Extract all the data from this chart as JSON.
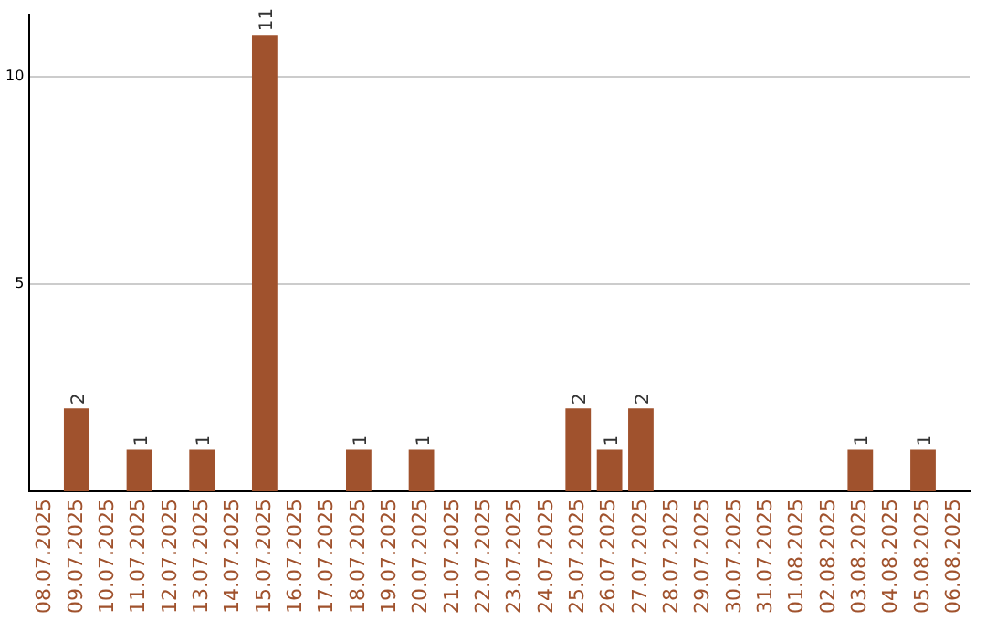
{
  "chart_data": {
    "type": "bar",
    "categories": [
      "08.07.2025",
      "09.07.2025",
      "10.07.2025",
      "11.07.2025",
      "12.07.2025",
      "13.07.2025",
      "14.07.2025",
      "15.07.2025",
      "16.07.2025",
      "17.07.2025",
      "18.07.2025",
      "19.07.2025",
      "20.07.2025",
      "21.07.2025",
      "22.07.2025",
      "23.07.2025",
      "24.07.2025",
      "25.07.2025",
      "26.07.2025",
      "27.07.2025",
      "28.07.2025",
      "29.07.2025",
      "30.07.2025",
      "31.07.2025",
      "01.08.2025",
      "02.08.2025",
      "03.08.2025",
      "04.08.2025",
      "05.08.2025",
      "06.08.2025"
    ],
    "values": [
      0,
      2,
      0,
      1,
      0,
      1,
      0,
      11,
      0,
      0,
      1,
      0,
      1,
      0,
      0,
      0,
      0,
      2,
      1,
      2,
      0,
      0,
      0,
      0,
      0,
      0,
      1,
      0,
      1,
      0
    ],
    "value_labels": [
      null,
      "2",
      null,
      "1",
      null,
      "1",
      null,
      "11",
      null,
      null,
      "1",
      null,
      "1",
      null,
      null,
      null,
      null,
      "2",
      "1",
      "2",
      null,
      null,
      null,
      null,
      null,
      null,
      "1",
      null,
      "1",
      null
    ],
    "color": "#a0522d",
    "ylim": [
      0,
      11.5
    ],
    "yticks": [
      5,
      10
    ],
    "grid": "y",
    "legend": false
  }
}
